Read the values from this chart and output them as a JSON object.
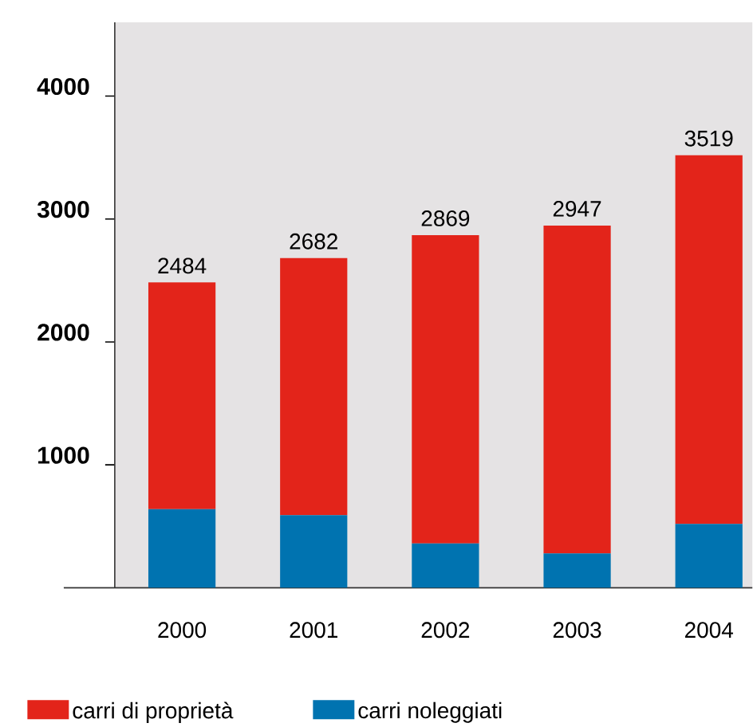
{
  "chart_data": {
    "type": "bar",
    "stacked": true,
    "categories": [
      "2000",
      "2001",
      "2002",
      "2003",
      "2004"
    ],
    "series": [
      {
        "name": "carri noleggiati",
        "color": "#0073b0",
        "values": [
          640,
          590,
          360,
          280,
          520
        ]
      },
      {
        "name": "carri di proprietà",
        "color": "#e3241a",
        "values": [
          1844,
          2092,
          2509,
          2667,
          2999
        ]
      }
    ],
    "totals": [
      "2484",
      "2682",
      "2869",
      "2947",
      "3519"
    ],
    "ylim": [
      0,
      4600
    ],
    "yticks": [
      1000,
      2000,
      3000,
      4000
    ],
    "legend": "bottom",
    "grid": false
  }
}
